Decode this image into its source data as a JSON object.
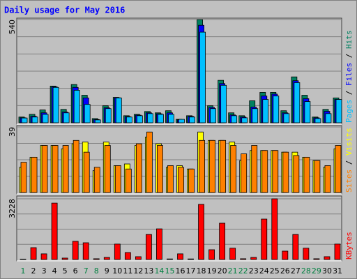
{
  "chart_data": [
    {
      "type": "bar",
      "title": "Daily usage for May 2016",
      "ylim": [
        0,
        540
      ],
      "yticks": [
        540
      ],
      "grid_divisions": 6,
      "legend_separator": " / ",
      "series": [
        {
          "name": "Hits",
          "color": "#008060",
          "values": [
            30,
            44,
            67,
            192,
            70,
            200,
            144,
            22,
            89,
            133,
            37,
            44,
            59,
            52,
            63,
            18,
            37,
            540,
            89,
            222,
            52,
            37,
            115,
            159,
            159,
            63,
            240,
            144,
            30,
            70,
            130
          ]
        },
        {
          "name": "Files",
          "color": "#0000ff",
          "values": [
            26,
            34,
            52,
            188,
            56,
            185,
            130,
            17,
            78,
            131,
            32,
            40,
            52,
            47,
            52,
            16,
            33,
            510,
            80,
            205,
            41,
            30,
            82,
            140,
            150,
            52,
            220,
            126,
            26,
            60,
            122
          ]
        },
        {
          "name": "Pages",
          "color": "#00c0ff",
          "values": [
            25,
            30,
            44,
            185,
            52,
            170,
            96,
            15,
            74,
            130,
            30,
            37,
            48,
            44,
            44,
            18,
            30,
            474,
            74,
            196,
            37,
            26,
            74,
            122,
            140,
            48,
            210,
            111,
            22,
            48,
            122
          ]
        }
      ]
    },
    {
      "type": "bar",
      "ylim": [
        0,
        39
      ],
      "yticks": [
        39
      ],
      "grid_divisions": 4,
      "legend_separator": " / ",
      "series": [
        {
          "name": "Visits",
          "color": "#ffff00",
          "values": [
            15,
            21,
            28,
            28,
            26,
            29,
            30,
            13,
            30,
            16,
            17,
            28,
            33,
            29,
            15,
            16,
            14,
            36,
            31,
            31,
            30,
            19,
            25,
            25,
            25,
            24,
            24,
            21,
            19,
            15,
            26
          ]
        },
        {
          "name": "Sites",
          "color": "#ff8000",
          "values": [
            18,
            21,
            28,
            28,
            28,
            31,
            24,
            15,
            28,
            16,
            14,
            29,
            36,
            28,
            16,
            15,
            14,
            31,
            31,
            31,
            28,
            23,
            28,
            25,
            25,
            24,
            22,
            21,
            19,
            16,
            28
          ]
        }
      ]
    },
    {
      "type": "bar",
      "ylim": [
        0,
        3228
      ],
      "yticks": [
        3228
      ],
      "grid_divisions": 4,
      "legend_separator": " / ",
      "categories": [
        "1",
        "2",
        "3",
        "4",
        "5",
        "6",
        "7",
        "8",
        "9",
        "10",
        "11",
        "12",
        "13",
        "14",
        "15",
        "16",
        "17",
        "18",
        "19",
        "20",
        "21",
        "22",
        "23",
        "24",
        "25",
        "26",
        "27",
        "28",
        "29",
        "30",
        "31"
      ],
      "category_colors": [
        "#008040",
        "#000000",
        "#000000",
        "#000000",
        "#000000",
        "#000000",
        "#008040",
        "#008040",
        "#000000",
        "#000000",
        "#000000",
        "#000000",
        "#000000",
        "#008040",
        "#008040",
        "#000000",
        "#000000",
        "#000000",
        "#000000",
        "#000000",
        "#008040",
        "#008040",
        "#000000",
        "#000000",
        "#000000",
        "#000000",
        "#000000",
        "#008040",
        "#008040",
        "#000000",
        "#000000"
      ],
      "series": [
        {
          "name": "KBytes",
          "color": "#ff0000",
          "values": [
            20,
            630,
            300,
            3000,
            75,
            965,
            890,
            40,
            110,
            820,
            370,
            150,
            1330,
            1630,
            30,
            300,
            30,
            2930,
            520,
            1930,
            600,
            40,
            110,
            2150,
            3228,
            445,
            1330,
            600,
            40,
            150,
            820
          ]
        }
      ]
    }
  ]
}
